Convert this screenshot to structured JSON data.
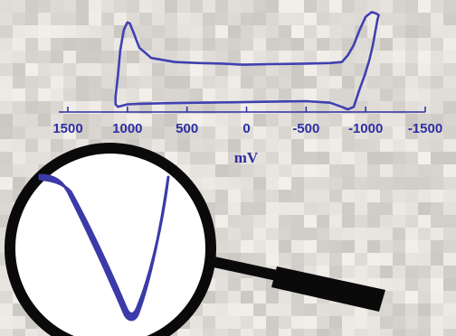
{
  "chart_data": {
    "type": "line",
    "xlabel": "mV",
    "ylabel": "",
    "x_reversed": true,
    "xlim": [
      1500,
      -1500
    ],
    "ylim": [
      -1.0,
      1.0
    ],
    "x_ticks": [
      1500,
      1000,
      500,
      0,
      -500,
      -1000,
      -1500
    ],
    "x_tick_labels": [
      "1500",
      "1000",
      "500",
      "0",
      "-500",
      "-1000",
      "-1500"
    ],
    "grid": false,
    "legend": "none",
    "series": [
      {
        "values_desc": "cyclic voltammogram (closed loop)",
        "x": [
          50,
          200,
          400,
          600,
          800,
          900,
          950,
          980,
          1000,
          1030,
          1060,
          1080,
          1100,
          1100,
          1080,
          1050,
          1000,
          900,
          700,
          400,
          100,
          -200,
          -500,
          -700,
          -800,
          -850,
          -900,
          -950,
          -990,
          -1030,
          -1060,
          -1080,
          -1100,
          -1110,
          -1100,
          -1080,
          -1050,
          -1000,
          -950,
          -900,
          -850,
          -800,
          -700,
          -500,
          -200,
          0,
          50
        ],
        "y": [
          -0.08,
          -0.06,
          -0.05,
          -0.03,
          0.05,
          0.25,
          0.55,
          0.72,
          0.74,
          0.6,
          0.2,
          -0.3,
          -0.7,
          -0.85,
          -0.9,
          -0.88,
          -0.85,
          -0.84,
          -0.83,
          -0.82,
          -0.81,
          -0.8,
          -0.79,
          -0.82,
          -0.9,
          -0.95,
          -0.9,
          -0.55,
          -0.3,
          0.0,
          0.3,
          0.55,
          0.8,
          0.88,
          0.9,
          0.92,
          0.94,
          0.85,
          0.6,
          0.3,
          0.1,
          -0.03,
          -0.05,
          -0.06,
          -0.07,
          -0.08,
          -0.08
        ]
      }
    ]
  },
  "colors": {
    "curve": "#4040b0",
    "axis": "#2e2ea0",
    "magnifier_ring": "#0a0a0a",
    "magnifier_fill": "#ffffff"
  },
  "icons": {
    "magnifier": "magnifying-glass-icon"
  }
}
